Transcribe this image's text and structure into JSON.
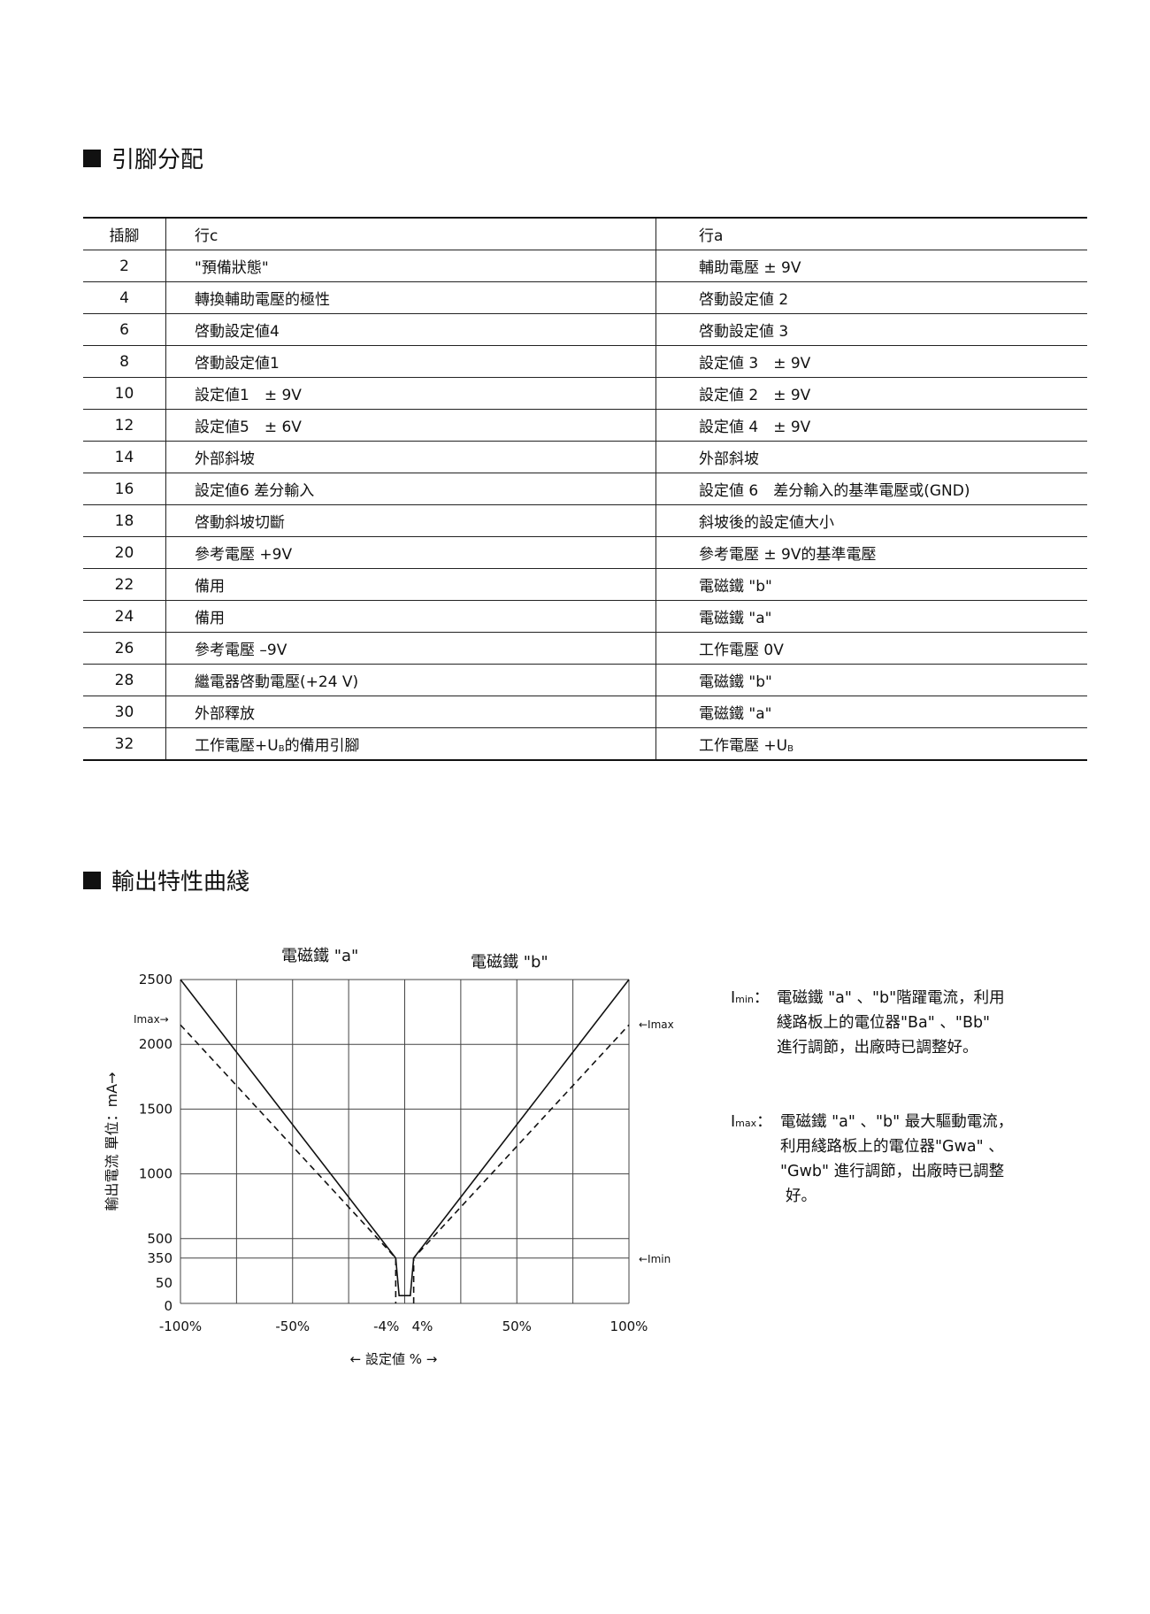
{
  "section1": {
    "title": "引腳分配"
  },
  "table": {
    "headers": [
      "插腳",
      "行c",
      "行a"
    ],
    "rows": [
      {
        "pin": "2",
        "c": "\"預備狀態\"",
        "a": "輔助電壓 ± 9V"
      },
      {
        "pin": "4",
        "c": "轉換輔助電壓的極性",
        "a": "啓動設定値 2"
      },
      {
        "pin": "6",
        "c": "啓動設定値4",
        "a": "啓動設定値 3"
      },
      {
        "pin": "8",
        "c": "啓動設定値1",
        "a": "設定値 3　± 9V"
      },
      {
        "pin": "10",
        "c": "設定値1　± 9V",
        "a": "設定値 2　± 9V"
      },
      {
        "pin": "12",
        "c": "設定値5　± 6V",
        "a": "設定値 4　± 9V"
      },
      {
        "pin": "14",
        "c": "外部斜坡",
        "a": "外部斜坡"
      },
      {
        "pin": "16",
        "c": "設定値6 差分輸入",
        "a": "設定値 6　差分輸入的基準電壓或(GND)"
      },
      {
        "pin": "18",
        "c": "啓動斜坡切斷",
        "a": "斜坡後的設定値大小"
      },
      {
        "pin": "20",
        "c": "參考電壓 +9V",
        "a": "參考電壓 ± 9V的基準電壓"
      },
      {
        "pin": "22",
        "c": "備用",
        "a": "電磁鐵 \"b\""
      },
      {
        "pin": "24",
        "c": "備用",
        "a": "電磁鐵 \"a\""
      },
      {
        "pin": "26",
        "c": "參考電壓 –9V",
        "a": "工作電壓 0V"
      },
      {
        "pin": "28",
        "c": "繼電器啓動電壓(+24 V)",
        "a": "電磁鐵 \"b\""
      },
      {
        "pin": "30",
        "c": "外部釋放",
        "a": "電磁鐵 \"a\""
      }
    ],
    "last_row": {
      "pin": "32",
      "c_pre": "工作電壓+U",
      "c_sub": "B",
      "c_post": "的備用引腳",
      "a_pre": "工作電壓 +U",
      "a_sub": "B"
    }
  },
  "section2": {
    "title": "輸出特性曲綫"
  },
  "chart_data": {
    "type": "line",
    "annotations_top": [
      "電磁鐵 \"a\"",
      "電磁鐵 \"b\""
    ],
    "xlabel": "← 設定値 % →",
    "ylabel": "輸出電流 單位：mA→",
    "x_ticks": [
      "-100%",
      "-50%",
      "-4%",
      "4%",
      "50%",
      "100%"
    ],
    "x_tick_values": [
      -100,
      -50,
      -4,
      4,
      50,
      100
    ],
    "x_grid": [
      -100,
      -75,
      -50,
      -25,
      0,
      25,
      50,
      75,
      100
    ],
    "y_ticks": [
      "2500",
      "2000",
      "1500",
      "1000",
      "500",
      "350",
      "50",
      "0"
    ],
    "y_tick_values": [
      2500,
      2000,
      1500,
      1000,
      500,
      350,
      50,
      0
    ],
    "y_grid": [
      2500,
      2000,
      1500,
      1000,
      500,
      350,
      0
    ],
    "xlim": [
      -100,
      100
    ],
    "ylim": [
      0,
      2500
    ],
    "grid": true,
    "series": [
      {
        "style": "solid",
        "x": [
          -100,
          -4,
          -2.5,
          2.5,
          4,
          100
        ],
        "y": [
          2500,
          350,
          60,
          60,
          350,
          2500
        ]
      },
      {
        "style": "dashed",
        "x": [
          -100,
          -4,
          -4
        ],
        "y": [
          2150,
          350,
          0
        ]
      },
      {
        "style": "dashed",
        "x": [
          4,
          4,
          100
        ],
        "y": [
          0,
          350,
          2150
        ]
      }
    ],
    "markers": {
      "imax_left": "Imax→",
      "imax_right": "←Imax",
      "imin_right": "←Imin",
      "imax_value": 2150,
      "imin_value": 350
    }
  },
  "notes": {
    "imin": {
      "label_main": "I",
      "label_sub": "min",
      "colon": "：",
      "lines": [
        "電磁鐵 \"a\" 、\"b\"階躍電流，利用",
        "綫路板上的電位器\"Ba\" 、\"Bb\"",
        "進行調節，出廠時已調整好。"
      ]
    },
    "imax": {
      "label_main": "I",
      "label_sub": "max",
      "colon": "：",
      "lines": [
        "電磁鐵 \"a\" 、\"b\" 最大驅動電流，",
        "利用綫路板上的電位器\"Gwa\" 、",
        "\"Gwb\" 進行調節，出廠時已調整",
        "好。"
      ]
    }
  }
}
